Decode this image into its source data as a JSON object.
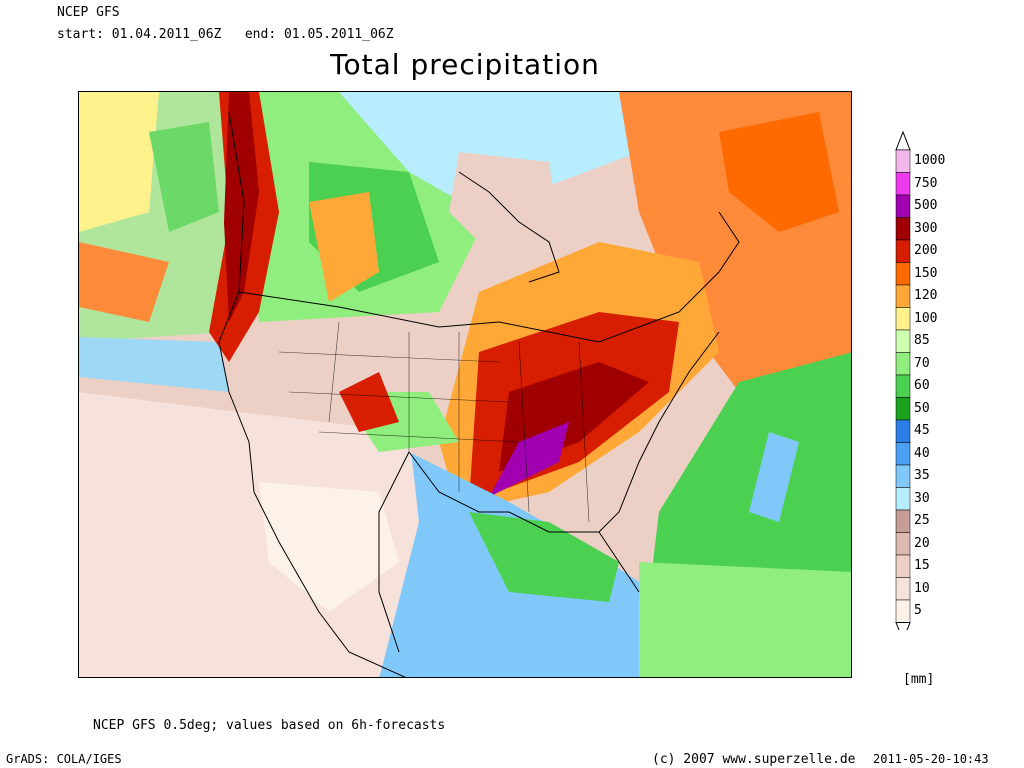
{
  "header": {
    "model": "NCEP GFS",
    "period": "start: 01.04.2011_06Z   end: 01.05.2011_06Z",
    "title": "Total precipitation"
  },
  "legend": {
    "units": "[mm]",
    "levels": [
      "1000",
      "750",
      "500",
      "300",
      "200",
      "150",
      "120",
      "100",
      "85",
      "70",
      "60",
      "50",
      "45",
      "40",
      "35",
      "30",
      "25",
      "20",
      "15",
      "10",
      "5"
    ],
    "colors": [
      "#f2b8ee",
      "#ef3bef",
      "#a000b0",
      "#a00000",
      "#d71e00",
      "#ff6a00",
      "#ffa838",
      "#fff28c",
      "#ccffb0",
      "#90ee7e",
      "#4cd052",
      "#1aa21e",
      "#2a7ee8",
      "#4aa0f2",
      "#80c8fa",
      "#b8ecff",
      "#c49d94",
      "#ddbab0",
      "#ecd0c6",
      "#f6e2da",
      "#fdf2ea"
    ]
  },
  "footer": {
    "note": "NCEP GFS 0.5deg; values based on 6h-forecasts",
    "software": "GrADS: COLA/IGES",
    "copyright": "(c) 2007 www.superzelle.de",
    "timestamp": "2011-05-20-10:43"
  }
}
